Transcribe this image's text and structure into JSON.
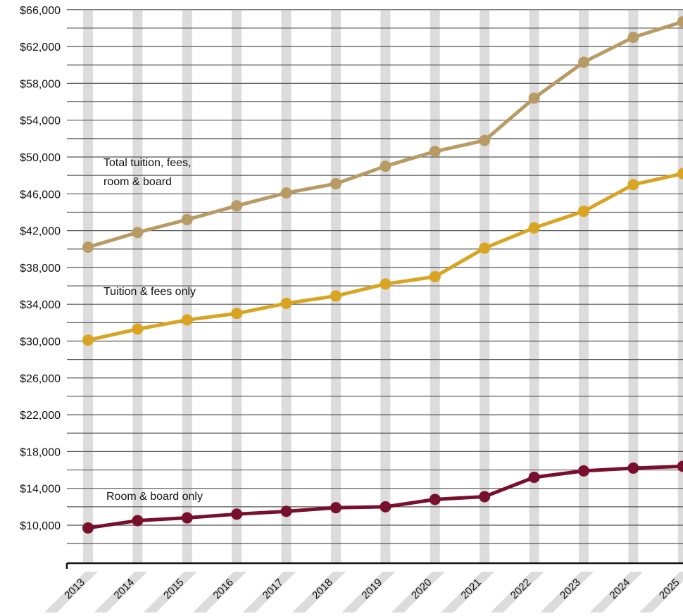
{
  "colors": {
    "background": "#ffffff",
    "gridline": "#555555",
    "column_band": "#dcdcdc",
    "axis": "#111111",
    "total": "#b89b64",
    "tuition": "#d9a421",
    "room": "#780f2d"
  },
  "chart_data": {
    "type": "line",
    "title": "",
    "xlabel": "",
    "ylabel": "",
    "x": [
      "2013",
      "2014",
      "2015",
      "2016",
      "2017",
      "2018",
      "2019",
      "2020",
      "2021",
      "2022",
      "2023",
      "2024",
      "2025"
    ],
    "y_ticks": [
      "$10,000",
      "$14,000",
      "$18,000",
      "$22,000",
      "$26,000",
      "$30,000",
      "$34,000",
      "$38,000",
      "$42,000",
      "$46,000",
      "$50,000",
      "$54,000",
      "$58,000",
      "$62,000",
      "$66,000"
    ],
    "ylim": [
      6000,
      66000
    ],
    "grid": true,
    "legend": "none",
    "series": [
      {
        "key": "total",
        "label_lines": [
          "Total tuition, fees,",
          "room & board"
        ],
        "values": [
          40200,
          41800,
          43200,
          44700,
          46100,
          47100,
          49000,
          50600,
          51800,
          56400,
          60300,
          63000,
          64700
        ]
      },
      {
        "key": "tuition",
        "label_lines": [
          "Tuition & fees only"
        ],
        "values": [
          30100,
          31300,
          32300,
          33000,
          34100,
          34900,
          36200,
          37000,
          40100,
          42300,
          44100,
          47000,
          48200
        ]
      },
      {
        "key": "room",
        "label_lines": [
          "Room & board only"
        ],
        "values": [
          9700,
          10500,
          10800,
          11200,
          11500,
          11900,
          12000,
          12800,
          13100,
          15200,
          15900,
          16200,
          16400
        ]
      }
    ]
  }
}
